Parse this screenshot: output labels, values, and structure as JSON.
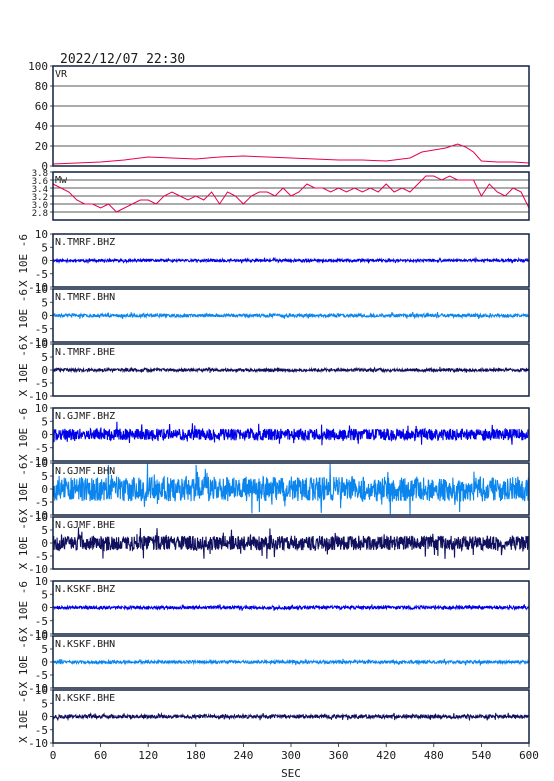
{
  "timestamp": "2022/12/07 22:30",
  "x_axis": {
    "label": "SEC",
    "range": [
      0,
      600
    ],
    "ticks": [
      0,
      60,
      120,
      180,
      240,
      300,
      360,
      420,
      480,
      540,
      600
    ],
    "tick_labels": [
      "0",
      "60",
      "120",
      "180",
      "240",
      "300",
      "360",
      "420",
      "480",
      "540",
      "600"
    ]
  },
  "amplitude_axis_label": "X 10E -6",
  "chart_data": [
    {
      "type": "line",
      "panel": "VR",
      "title": "VR",
      "color": "#e8004c",
      "ylim": [
        0,
        100
      ],
      "ytick_values": [
        0,
        20,
        40,
        60,
        80,
        100
      ],
      "ytick_labels": [
        "0",
        "20",
        "40",
        "60",
        "80",
        "100"
      ],
      "grid": true,
      "series": [
        {
          "x": [
            0,
            30,
            60,
            90,
            120,
            150,
            180,
            210,
            240,
            270,
            300,
            330,
            360,
            390,
            420,
            450,
            465,
            480,
            495,
            510,
            520,
            530,
            540,
            560,
            580,
            600
          ],
          "values": [
            2,
            3,
            4,
            6,
            9,
            8,
            7,
            9,
            10,
            9,
            8,
            7,
            6,
            6,
            5,
            8,
            14,
            16,
            18,
            22,
            19,
            14,
            5,
            4,
            4,
            3
          ]
        }
      ]
    },
    {
      "type": "line",
      "panel": "Mw",
      "title": "Mw",
      "color": "#e8004c",
      "ylim": [
        2.6,
        3.8
      ],
      "ytick_values": [
        2.8,
        3.0,
        3.2,
        3.4,
        3.6,
        3.8
      ],
      "ytick_labels": [
        "2.8",
        "3.0",
        "3.2",
        "3.4",
        "3.6",
        "3.8"
      ],
      "grid": true,
      "series": [
        {
          "x": [
            0,
            10,
            20,
            30,
            40,
            50,
            60,
            70,
            80,
            90,
            100,
            110,
            120,
            130,
            140,
            150,
            160,
            170,
            180,
            190,
            200,
            210,
            220,
            230,
            240,
            250,
            260,
            270,
            280,
            290,
            300,
            310,
            320,
            330,
            340,
            350,
            360,
            370,
            380,
            390,
            400,
            410,
            420,
            430,
            440,
            450,
            460,
            470,
            480,
            490,
            500,
            510,
            520,
            530,
            540,
            550,
            560,
            570,
            580,
            590,
            600
          ],
          "values": [
            3.5,
            3.4,
            3.3,
            3.1,
            3.0,
            3.0,
            2.9,
            3.0,
            2.8,
            2.9,
            3.0,
            3.1,
            3.1,
            3.0,
            3.2,
            3.3,
            3.2,
            3.1,
            3.2,
            3.1,
            3.3,
            3.0,
            3.3,
            3.2,
            3.0,
            3.2,
            3.3,
            3.3,
            3.2,
            3.4,
            3.2,
            3.3,
            3.5,
            3.4,
            3.4,
            3.3,
            3.4,
            3.3,
            3.4,
            3.3,
            3.4,
            3.3,
            3.5,
            3.3,
            3.4,
            3.3,
            3.5,
            3.7,
            3.7,
            3.6,
            3.7,
            3.6,
            3.6,
            3.6,
            3.2,
            3.5,
            3.3,
            3.2,
            3.4,
            3.3,
            2.9
          ]
        }
      ]
    },
    {
      "type": "line",
      "panel": "waveform",
      "title": "N.TMRF.BHZ",
      "color": "#0000e8",
      "ylim": [
        -10,
        10
      ],
      "ytick_values": [
        -10,
        -5,
        0,
        5,
        10
      ],
      "ytick_labels": [
        "-10",
        "-5",
        "0",
        "5",
        "10"
      ],
      "amplitude": 0.5,
      "seed": 11,
      "series": [
        {
          "name": "N.TMRF.BHZ"
        }
      ]
    },
    {
      "type": "line",
      "panel": "waveform",
      "title": "N.TMRF.BHN",
      "color": "#0b85ee",
      "ylim": [
        -10,
        10
      ],
      "ytick_values": [
        -10,
        -5,
        0,
        5,
        10
      ],
      "ytick_labels": [
        "-10",
        "-5",
        "0",
        "5",
        "10"
      ],
      "amplitude": 0.6,
      "seed": 23,
      "series": [
        {
          "name": "N.TMRF.BHN"
        }
      ]
    },
    {
      "type": "line",
      "panel": "waveform",
      "title": "N.TMRF.BHE",
      "color": "#10105e",
      "ylim": [
        -10,
        10
      ],
      "ytick_values": [
        -10,
        -5,
        0,
        5,
        10
      ],
      "ytick_labels": [
        "-10",
        "-5",
        "0",
        "5",
        "10"
      ],
      "amplitude": 0.6,
      "seed": 37,
      "series": [
        {
          "name": "N.TMRF.BHE"
        }
      ]
    },
    {
      "type": "line",
      "panel": "waveform",
      "title": "N.GJMF.BHZ",
      "color": "#0000e8",
      "ylim": [
        -10,
        10
      ],
      "ytick_values": [
        -10,
        -5,
        0,
        5,
        10
      ],
      "ytick_labels": [
        "-10",
        "-5",
        "0",
        "5",
        "10"
      ],
      "amplitude": 2.2,
      "seed": 41,
      "series": [
        {
          "name": "N.GJMF.BHZ"
        }
      ]
    },
    {
      "type": "line",
      "panel": "waveform",
      "title": "N.GJMF.BHN",
      "color": "#0b85ee",
      "ylim": [
        -10,
        10
      ],
      "ytick_values": [
        -10,
        -5,
        0,
        5,
        10
      ],
      "ytick_labels": [
        "-10",
        "-5",
        "0",
        "5",
        "10"
      ],
      "amplitude": 4.8,
      "seed": 53,
      "series": [
        {
          "name": "N.GJMF.BHN"
        }
      ]
    },
    {
      "type": "line",
      "panel": "waveform",
      "title": "N.GJMF.BHE",
      "color": "#10105e",
      "ylim": [
        -10,
        10
      ],
      "ytick_values": [
        -10,
        -5,
        0,
        5,
        10
      ],
      "ytick_labels": [
        "-10",
        "-5",
        "0",
        "5",
        "10"
      ],
      "amplitude": 2.8,
      "seed": 67,
      "series": [
        {
          "name": "N.GJMF.BHE"
        }
      ]
    },
    {
      "type": "line",
      "panel": "waveform",
      "title": "N.KSKF.BHZ",
      "color": "#0000e8",
      "ylim": [
        -10,
        10
      ],
      "ytick_values": [
        -10,
        -5,
        0,
        5,
        10
      ],
      "ytick_labels": [
        "-10",
        "-5",
        "0",
        "5",
        "10"
      ],
      "amplitude": 0.6,
      "seed": 71,
      "series": [
        {
          "name": "N.KSKF.BHZ"
        }
      ]
    },
    {
      "type": "line",
      "panel": "waveform",
      "title": "N.KSKF.BHN",
      "color": "#0b85ee",
      "ylim": [
        -10,
        10
      ],
      "ytick_values": [
        -10,
        -5,
        0,
        5,
        10
      ],
      "ytick_labels": [
        "-10",
        "-5",
        "0",
        "5",
        "10"
      ],
      "amplitude": 0.6,
      "seed": 83,
      "series": [
        {
          "name": "N.KSKF.BHN"
        }
      ]
    },
    {
      "type": "line",
      "panel": "waveform",
      "title": "N.KSKF.BHE",
      "color": "#10105e",
      "ylim": [
        -10,
        10
      ],
      "ytick_values": [
        -10,
        -5,
        0,
        5,
        10
      ],
      "ytick_labels": [
        "-10",
        "-5",
        "0",
        "5",
        "10"
      ],
      "amplitude": 0.7,
      "seed": 97,
      "series": [
        {
          "name": "N.KSKF.BHE"
        }
      ]
    }
  ]
}
